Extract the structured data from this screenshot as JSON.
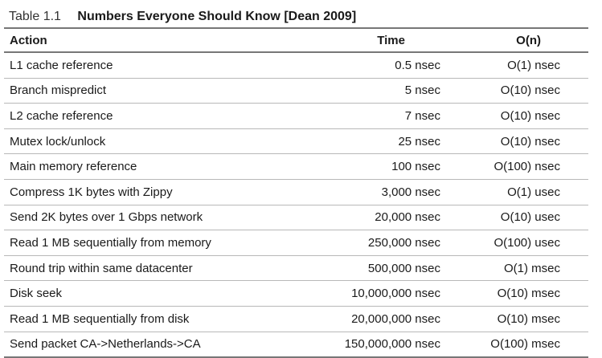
{
  "caption": {
    "number": "Table 1.1",
    "title": "Numbers Everyone Should Know [Dean 2009]"
  },
  "columns": [
    "Action",
    "Time",
    "O(n)"
  ],
  "rows": [
    {
      "action": "L1 cache reference",
      "time": "0.5 nsec",
      "on": "O(1) nsec"
    },
    {
      "action": "Branch mispredict",
      "time": "5 nsec",
      "on": "O(10) nsec"
    },
    {
      "action": "L2 cache reference",
      "time": "7 nsec",
      "on": "O(10) nsec"
    },
    {
      "action": "Mutex lock/unlock",
      "time": "25 nsec",
      "on": "O(10) nsec"
    },
    {
      "action": "Main memory reference",
      "time": "100 nsec",
      "on": "O(100) nsec"
    },
    {
      "action": "Compress 1K bytes with Zippy",
      "time": "3,000 nsec",
      "on": "O(1) usec"
    },
    {
      "action": "Send 2K bytes over 1 Gbps network",
      "time": "20,000 nsec",
      "on": "O(10) usec"
    },
    {
      "action": "Read 1 MB sequentially from memory",
      "time": "250,000 nsec",
      "on": "O(100) usec"
    },
    {
      "action": "Round trip within same datacenter",
      "time": "500,000 nsec",
      "on": "O(1) msec"
    },
    {
      "action": "Disk seek",
      "time": "10,000,000 nsec",
      "on": "O(10) msec"
    },
    {
      "action": "Read 1 MB sequentially from disk",
      "time": "20,000,000 nsec",
      "on": "O(10) msec"
    },
    {
      "action": "Send packet CA->Netherlands->CA",
      "time": "150,000,000 nsec",
      "on": "O(100) msec"
    }
  ]
}
